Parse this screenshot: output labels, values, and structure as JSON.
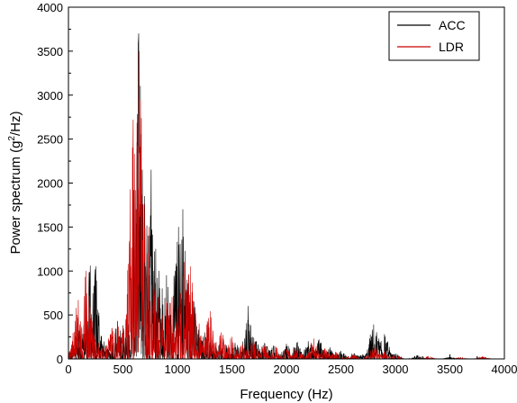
{
  "chart_data": {
    "type": "line",
    "xlabel": "Frequency (Hz)",
    "ylabel_main": "Power spectrum (g",
    "ylabel_sup": "2",
    "ylabel_tail": "/Hz)",
    "xlim": [
      0,
      4000
    ],
    "ylim": [
      0,
      4000
    ],
    "xticks": [
      0,
      500,
      1000,
      1500,
      2000,
      2500,
      3000,
      3500,
      4000
    ],
    "yticks": [
      0,
      500,
      1000,
      1500,
      2000,
      2500,
      3000,
      3500,
      4000
    ],
    "grid": false,
    "legend_position": "top-right",
    "series": [
      {
        "name": "ACC",
        "color": "#000000",
        "peaks": [
          {
            "x": 60,
            "y": 180
          },
          {
            "x": 100,
            "y": 320
          },
          {
            "x": 160,
            "y": 520
          },
          {
            "x": 200,
            "y": 1060
          },
          {
            "x": 250,
            "y": 1050
          },
          {
            "x": 300,
            "y": 260
          },
          {
            "x": 340,
            "y": 150
          },
          {
            "x": 400,
            "y": 160
          },
          {
            "x": 450,
            "y": 430
          },
          {
            "x": 500,
            "y": 380
          },
          {
            "x": 540,
            "y": 420
          },
          {
            "x": 580,
            "y": 520
          },
          {
            "x": 620,
            "y": 900
          },
          {
            "x": 645,
            "y": 3700
          },
          {
            "x": 670,
            "y": 1500
          },
          {
            "x": 700,
            "y": 1850
          },
          {
            "x": 730,
            "y": 1400
          },
          {
            "x": 760,
            "y": 2150
          },
          {
            "x": 800,
            "y": 1250
          },
          {
            "x": 830,
            "y": 1000
          },
          {
            "x": 860,
            "y": 800
          },
          {
            "x": 900,
            "y": 950
          },
          {
            "x": 940,
            "y": 500
          },
          {
            "x": 980,
            "y": 1000
          },
          {
            "x": 1010,
            "y": 1500
          },
          {
            "x": 1050,
            "y": 1700
          },
          {
            "x": 1090,
            "y": 900
          },
          {
            "x": 1150,
            "y": 650
          },
          {
            "x": 1250,
            "y": 300
          },
          {
            "x": 1300,
            "y": 200
          },
          {
            "x": 1380,
            "y": 150
          },
          {
            "x": 1450,
            "y": 150
          },
          {
            "x": 1530,
            "y": 180
          },
          {
            "x": 1600,
            "y": 100
          },
          {
            "x": 1650,
            "y": 600
          },
          {
            "x": 1720,
            "y": 200
          },
          {
            "x": 1800,
            "y": 180
          },
          {
            "x": 1880,
            "y": 150
          },
          {
            "x": 2000,
            "y": 170
          },
          {
            "x": 2100,
            "y": 190
          },
          {
            "x": 2200,
            "y": 200
          },
          {
            "x": 2300,
            "y": 220
          },
          {
            "x": 2400,
            "y": 130
          },
          {
            "x": 2500,
            "y": 90
          },
          {
            "x": 2620,
            "y": 60
          },
          {
            "x": 2700,
            "y": 50
          },
          {
            "x": 2800,
            "y": 390
          },
          {
            "x": 2850,
            "y": 230
          },
          {
            "x": 2900,
            "y": 280
          },
          {
            "x": 3000,
            "y": 60
          },
          {
            "x": 3200,
            "y": 40
          },
          {
            "x": 3500,
            "y": 20
          },
          {
            "x": 3800,
            "y": 15
          }
        ]
      },
      {
        "name": "LDR",
        "color": "#cc0000",
        "peaks": [
          {
            "x": 40,
            "y": 120
          },
          {
            "x": 90,
            "y": 670
          },
          {
            "x": 120,
            "y": 360
          },
          {
            "x": 160,
            "y": 1000
          },
          {
            "x": 190,
            "y": 600
          },
          {
            "x": 230,
            "y": 220
          },
          {
            "x": 280,
            "y": 180
          },
          {
            "x": 340,
            "y": 150
          },
          {
            "x": 400,
            "y": 350
          },
          {
            "x": 450,
            "y": 420
          },
          {
            "x": 500,
            "y": 350
          },
          {
            "x": 530,
            "y": 250
          },
          {
            "x": 570,
            "y": 1050
          },
          {
            "x": 595,
            "y": 2720
          },
          {
            "x": 620,
            "y": 1700
          },
          {
            "x": 640,
            "y": 1930
          },
          {
            "x": 650,
            "y": 3500
          },
          {
            "x": 660,
            "y": 2950
          },
          {
            "x": 680,
            "y": 1350
          },
          {
            "x": 700,
            "y": 1100
          },
          {
            "x": 740,
            "y": 1500
          },
          {
            "x": 780,
            "y": 1000
          },
          {
            "x": 820,
            "y": 700
          },
          {
            "x": 860,
            "y": 500
          },
          {
            "x": 900,
            "y": 650
          },
          {
            "x": 950,
            "y": 700
          },
          {
            "x": 1000,
            "y": 600
          },
          {
            "x": 1060,
            "y": 1100
          },
          {
            "x": 1120,
            "y": 1050
          },
          {
            "x": 1200,
            "y": 400
          },
          {
            "x": 1300,
            "y": 540
          },
          {
            "x": 1400,
            "y": 300
          },
          {
            "x": 1500,
            "y": 250
          },
          {
            "x": 1600,
            "y": 170
          },
          {
            "x": 1700,
            "y": 220
          },
          {
            "x": 1800,
            "y": 150
          },
          {
            "x": 1900,
            "y": 140
          },
          {
            "x": 2000,
            "y": 120
          },
          {
            "x": 2100,
            "y": 130
          },
          {
            "x": 2250,
            "y": 230
          },
          {
            "x": 2350,
            "y": 120
          },
          {
            "x": 2450,
            "y": 80
          },
          {
            "x": 2600,
            "y": 60
          },
          {
            "x": 2800,
            "y": 150
          },
          {
            "x": 2900,
            "y": 90
          },
          {
            "x": 3000,
            "y": 50
          },
          {
            "x": 3300,
            "y": 30
          },
          {
            "x": 3600,
            "y": 20
          },
          {
            "x": 3800,
            "y": 30
          }
        ]
      }
    ]
  }
}
